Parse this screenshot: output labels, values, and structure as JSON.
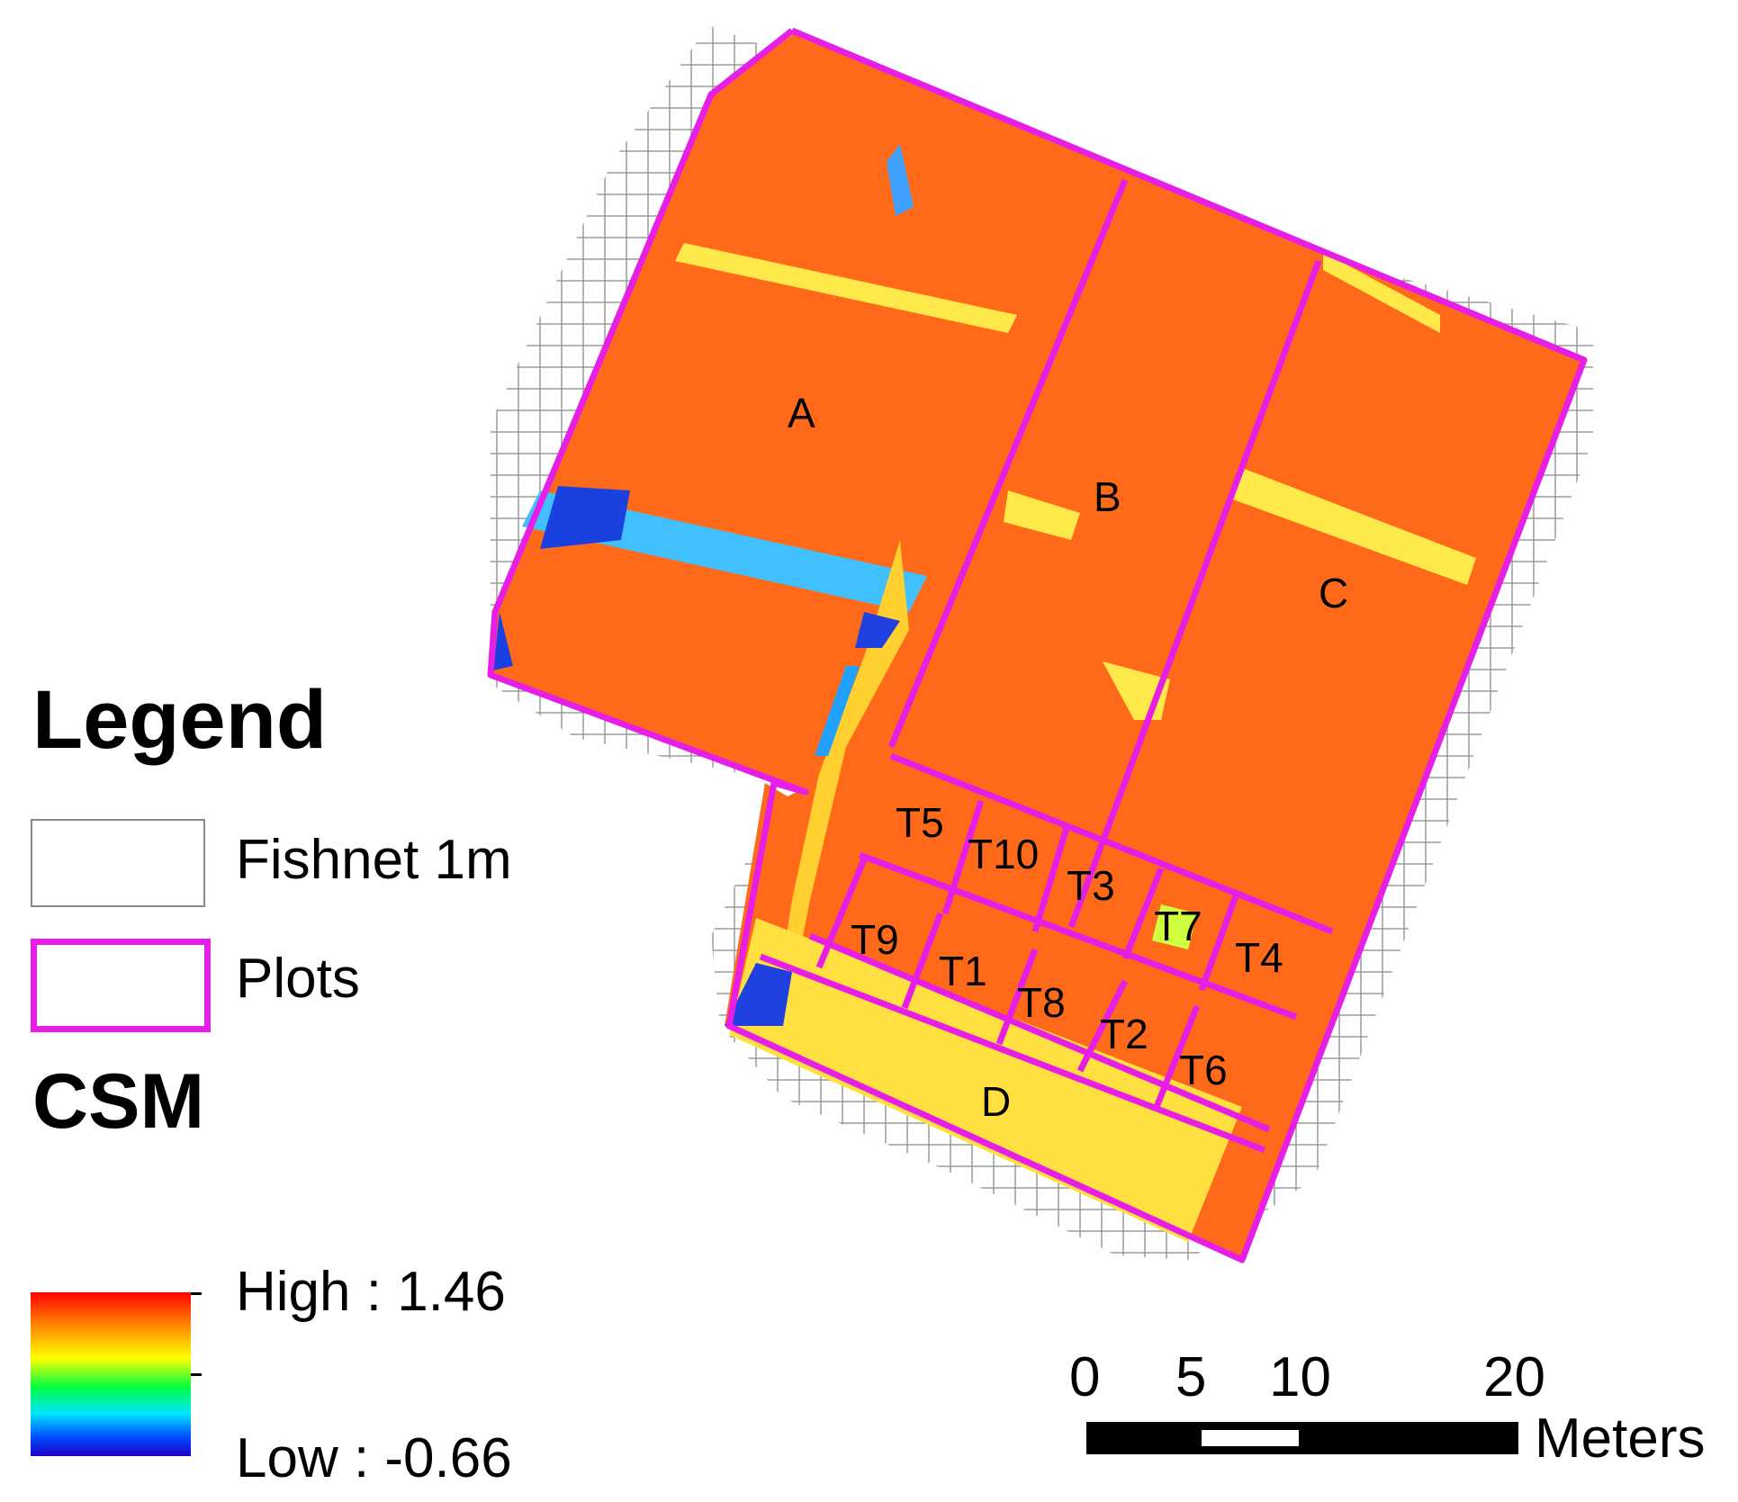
{
  "map": {
    "plots": [
      {
        "label": "A"
      },
      {
        "label": "B"
      },
      {
        "label": "C"
      },
      {
        "label": "D"
      },
      {
        "label": "T5"
      },
      {
        "label": "T10"
      },
      {
        "label": "T3"
      },
      {
        "label": "T7"
      },
      {
        "label": "T9"
      },
      {
        "label": "T1"
      },
      {
        "label": "T8"
      },
      {
        "label": "T2"
      },
      {
        "label": "T4"
      },
      {
        "label": "T6"
      }
    ],
    "colors": {
      "plot_outline": "#e61ee6",
      "fishnet": "#9a9a9a",
      "csm_high": "#ff0000",
      "csm_mid": "#ffff00",
      "csm_low": "#1a00c8"
    }
  },
  "legend": {
    "title": "Legend",
    "fishnet_label": "Fishnet 1m",
    "plots_label": "Plots",
    "csm_title": "CSM",
    "high_label": "High : 1.46",
    "low_label": "Low : -0.66"
  },
  "scale_bar": {
    "ticks": [
      "0",
      "5",
      "10",
      "20"
    ],
    "unit": "Meters"
  }
}
